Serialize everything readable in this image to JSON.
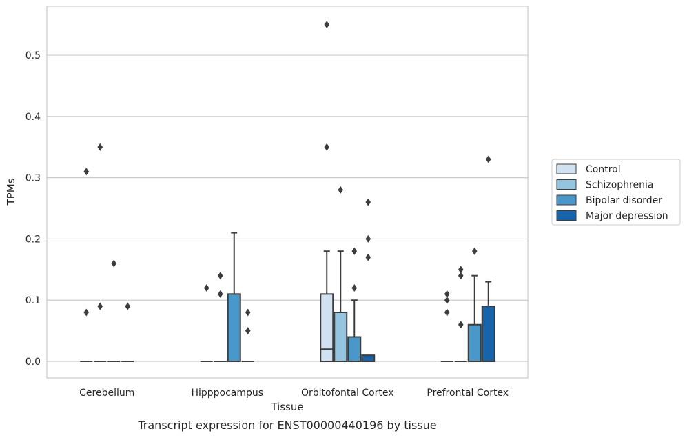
{
  "chart_data": {
    "type": "box",
    "title": "Transcript expression for ENST00000440196 by tissue",
    "xlabel": "Tissue",
    "ylabel": "TPMs",
    "ylim": [
      -0.027,
      0.58
    ],
    "yticks": [
      0.0,
      0.1,
      0.2,
      0.3,
      0.4,
      0.5
    ],
    "ytick_labels": [
      "0.0",
      "0.1",
      "0.2",
      "0.3",
      "0.4",
      "0.5"
    ],
    "grid": "horizontal",
    "legend_position": "right-outside",
    "categories": [
      "Cerebellum",
      "Hipppocampus",
      "Orbitofontal Cortex",
      "Prefrontal Cortex"
    ],
    "series": [
      {
        "name": "Control",
        "color": "#d0e1f2",
        "boxes": [
          {
            "q1": 0,
            "median": 0,
            "q3": 0,
            "whislo": 0,
            "whishi": 0,
            "fliers": [
              0.08,
              0.31
            ]
          },
          {
            "q1": 0,
            "median": 0,
            "q3": 0,
            "whislo": 0,
            "whishi": 0,
            "fliers": [
              0.12
            ]
          },
          {
            "q1": 0,
            "median": 0.02,
            "q3": 0.11,
            "whislo": 0,
            "whishi": 0.18,
            "fliers": [
              0.35,
              0.55
            ]
          },
          {
            "q1": 0,
            "median": 0,
            "q3": 0,
            "whislo": 0,
            "whishi": 0,
            "fliers": [
              0.08,
              0.1,
              0.11
            ]
          }
        ]
      },
      {
        "name": "Schizophrenia",
        "color": "#94c4df",
        "boxes": [
          {
            "q1": 0,
            "median": 0,
            "q3": 0,
            "whislo": 0,
            "whishi": 0,
            "fliers": [
              0.09,
              0.35
            ]
          },
          {
            "q1": 0,
            "median": 0,
            "q3": 0,
            "whislo": 0,
            "whishi": 0,
            "fliers": [
              0.11,
              0.14
            ]
          },
          {
            "q1": 0,
            "median": 0,
            "q3": 0.08,
            "whislo": 0,
            "whishi": 0.18,
            "fliers": [
              0.28
            ]
          },
          {
            "q1": 0,
            "median": 0,
            "q3": 0,
            "whislo": 0,
            "whishi": 0,
            "fliers": [
              0.06,
              0.14,
              0.15
            ]
          }
        ]
      },
      {
        "name": "Bipolar disorder",
        "color": "#4a98c9",
        "boxes": [
          {
            "q1": 0,
            "median": 0,
            "q3": 0,
            "whislo": 0,
            "whishi": 0,
            "fliers": [
              0.16
            ]
          },
          {
            "q1": 0,
            "median": 0,
            "q3": 0.11,
            "whislo": 0,
            "whishi": 0.21,
            "fliers": []
          },
          {
            "q1": 0,
            "median": 0,
            "q3": 0.04,
            "whislo": 0,
            "whishi": 0.1,
            "fliers": [
              0.12,
              0.18
            ]
          },
          {
            "q1": 0,
            "median": 0,
            "q3": 0.06,
            "whislo": 0,
            "whishi": 0.14,
            "fliers": [
              0.18
            ]
          }
        ]
      },
      {
        "name": "Major depression",
        "color": "#1764ab",
        "boxes": [
          {
            "q1": 0,
            "median": 0,
            "q3": 0,
            "whislo": 0,
            "whishi": 0,
            "fliers": [
              0.09
            ]
          },
          {
            "q1": 0,
            "median": 0,
            "q3": 0,
            "whislo": 0,
            "whishi": 0,
            "fliers": [
              0.05,
              0.08
            ]
          },
          {
            "q1": 0,
            "median": 0,
            "q3": 0.01,
            "whislo": 0,
            "whishi": 0.01,
            "fliers": [
              0.17,
              0.2,
              0.26
            ]
          },
          {
            "q1": 0,
            "median": 0,
            "q3": 0.09,
            "whislo": 0,
            "whishi": 0.13,
            "fliers": [
              0.33
            ]
          }
        ]
      }
    ]
  }
}
